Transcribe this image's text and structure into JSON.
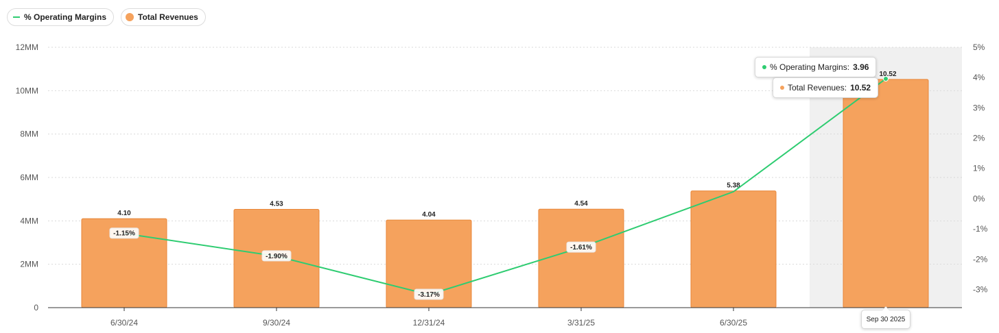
{
  "legend": {
    "margin_label": "% Operating Margins",
    "revenue_label": "Total Revenues"
  },
  "tooltip": {
    "margin_label": "% Operating Margins:",
    "margin_value": "3.96",
    "revenue_label": "Total Revenues:",
    "revenue_value": "10.52",
    "date": "Sep 30 2025"
  },
  "colors": {
    "bar": "#f5a25d",
    "bar_border": "#e8873a",
    "line": "#2ecc71",
    "highlight": "#f0f0f0"
  },
  "chart_data": {
    "type": "bar",
    "categories": [
      "6/30/24",
      "9/30/24",
      "12/31/24",
      "3/31/25",
      "6/30/25",
      ""
    ],
    "series": [
      {
        "name": "Total Revenues",
        "type": "bar",
        "axis": "left",
        "values": [
          4.1,
          4.53,
          4.04,
          4.54,
          5.38,
          10.52
        ],
        "labels": [
          "4.10",
          "4.53",
          "4.04",
          "4.54",
          "5.38",
          "10.52"
        ]
      },
      {
        "name": "% Operating Margins",
        "type": "line",
        "axis": "right",
        "values": [
          -1.15,
          -1.9,
          -3.17,
          -1.61,
          0.23,
          3.96
        ],
        "labels": [
          "-1.15%",
          "-1.90%",
          "-3.17%",
          "-1.61%",
          "",
          ""
        ]
      }
    ],
    "left_axis": {
      "ticks": [
        0,
        2,
        4,
        6,
        8,
        10,
        12
      ],
      "tick_labels": [
        "0",
        "2MM",
        "4MM",
        "6MM",
        "8MM",
        "10MM",
        "12MM"
      ],
      "ylim": [
        0,
        12
      ]
    },
    "right_axis": {
      "ticks": [
        5,
        4,
        3,
        2,
        1,
        0,
        -1,
        -2,
        -3
      ],
      "tick_labels": [
        "5%",
        "4%",
        "3%",
        "2%",
        "1%",
        "0%",
        "-1%",
        "-2%",
        "-3%"
      ],
      "ylim": [
        -3.6,
        5
      ]
    },
    "highlighted_index": 5,
    "grid": true,
    "legend_position": "top-left"
  }
}
